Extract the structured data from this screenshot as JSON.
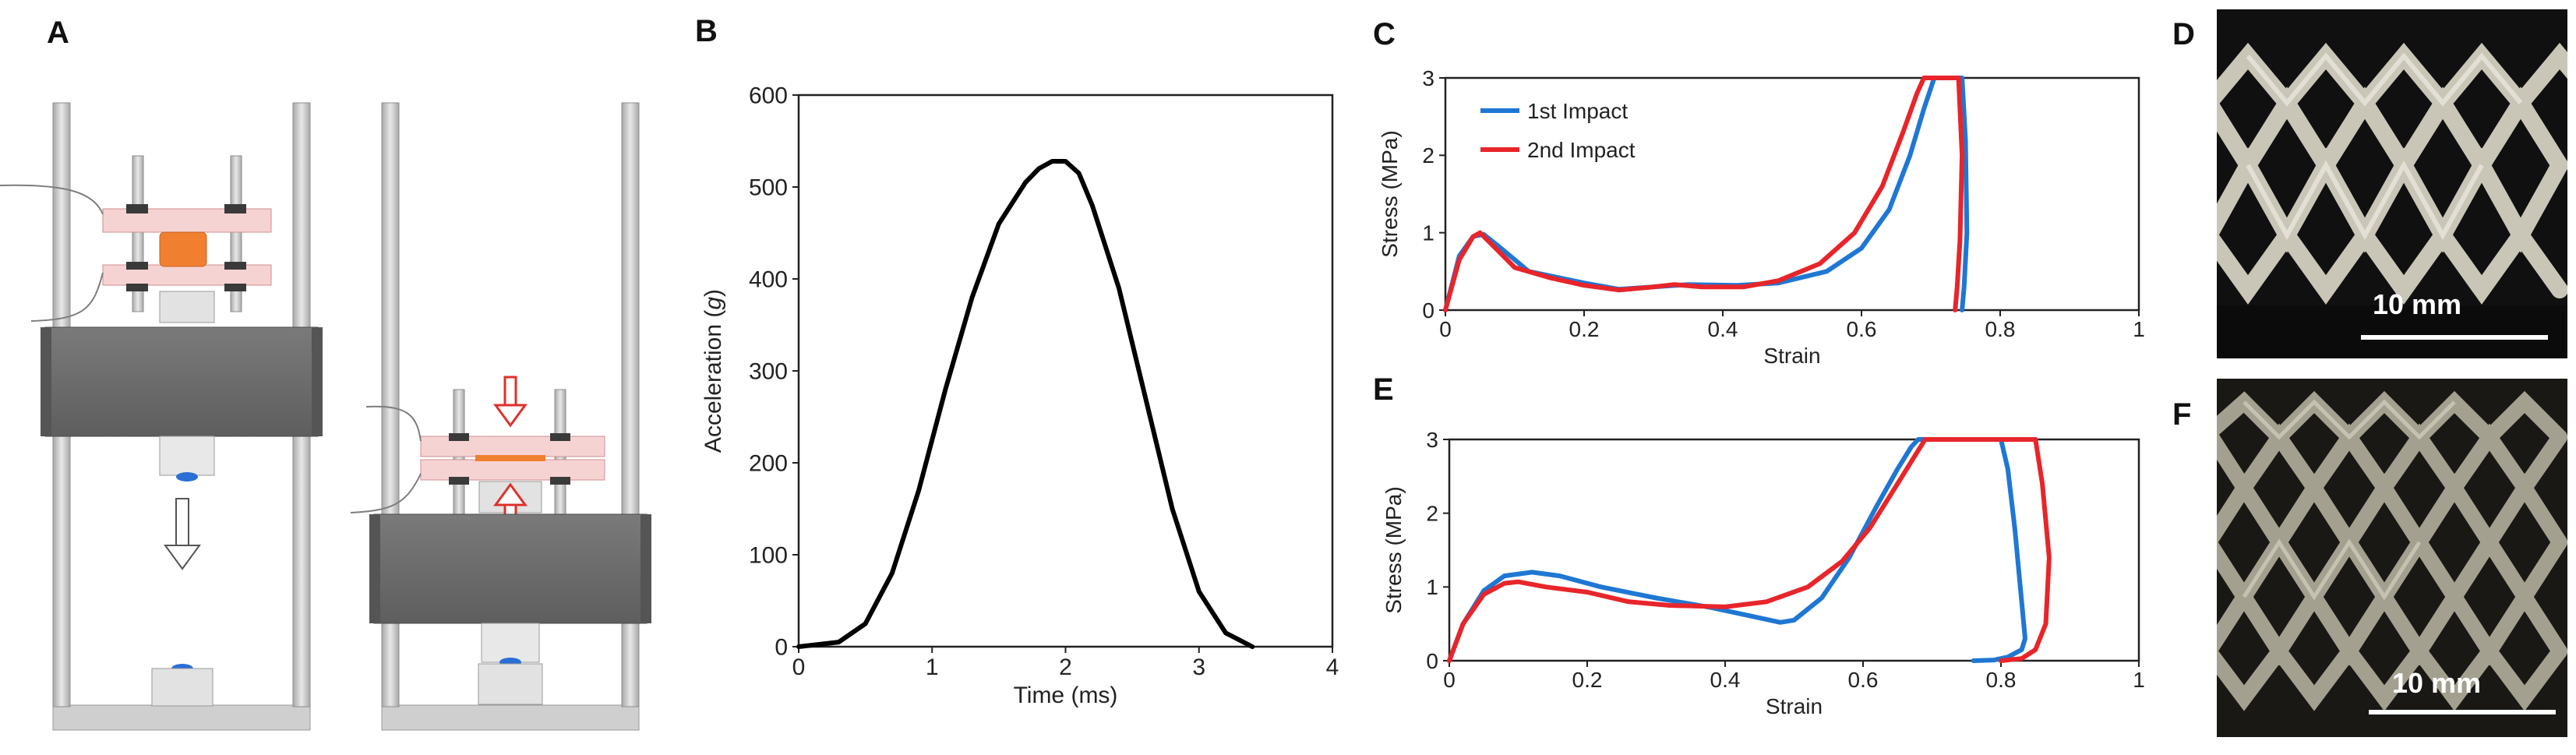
{
  "panels": {
    "A": {
      "label": "A"
    },
    "B": {
      "label": "B"
    },
    "C": {
      "label": "C"
    },
    "D": {
      "label": "D",
      "scale_text": "10 mm"
    },
    "E": {
      "label": "E"
    },
    "F": {
      "label": "F",
      "scale_text": "10 mm"
    }
  },
  "colors": {
    "first_impact": "#1f77d4",
    "second_impact": "#e8252a",
    "acceleration": "#000000",
    "plate": "#f6d3d3",
    "plate_edge": "#cc8f8f",
    "sample": "#f08030",
    "frame": "#cccccc",
    "block": "#6f6f6f"
  },
  "chart_data": [
    {
      "id": "B",
      "type": "line",
      "xlabel": "Time (ms)",
      "ylabel": "Acceleration (g)",
      "xlim": [
        0,
        4
      ],
      "ylim": [
        0,
        600
      ],
      "xticks": [
        "0",
        "1",
        "2",
        "3",
        "4"
      ],
      "yticks": [
        "0",
        "100",
        "200",
        "300",
        "400",
        "500",
        "600"
      ],
      "series": [
        {
          "name": "Acceleration",
          "x": [
            0,
            0.3,
            0.5,
            0.7,
            0.9,
            1.1,
            1.3,
            1.5,
            1.7,
            1.8,
            1.9,
            2.0,
            2.1,
            2.2,
            2.4,
            2.6,
            2.8,
            3.0,
            3.2,
            3.4
          ],
          "y": [
            0,
            5,
            25,
            80,
            170,
            280,
            380,
            460,
            505,
            520,
            528,
            528,
            515,
            480,
            390,
            270,
            150,
            60,
            15,
            0
          ]
        }
      ]
    },
    {
      "id": "C",
      "type": "line",
      "xlabel": "Strain",
      "ylabel": "Stress (MPa)",
      "xlim": [
        0,
        1
      ],
      "ylim": [
        0,
        3
      ],
      "xticks": [
        "0",
        "0.2",
        "0.4",
        "0.6",
        "0.8",
        "1"
      ],
      "yticks": [
        "0",
        "1",
        "2",
        "3"
      ],
      "legend": [
        "1st Impact",
        "2nd Impact"
      ],
      "series": [
        {
          "name": "1st Impact",
          "x": [
            0,
            0.02,
            0.04,
            0.055,
            0.08,
            0.12,
            0.2,
            0.25,
            0.3,
            0.35,
            0.42,
            0.48,
            0.55,
            0.6,
            0.64,
            0.67,
            0.69,
            0.705,
            0.72,
            0.745,
            0.75,
            0.752,
            0.748,
            0.745
          ],
          "y": [
            0,
            0.7,
            0.95,
            0.98,
            0.8,
            0.5,
            0.35,
            0.27,
            0.3,
            0.33,
            0.32,
            0.35,
            0.5,
            0.8,
            1.3,
            2.0,
            2.6,
            3.0,
            3.0,
            3.0,
            2.2,
            1.0,
            0.3,
            0
          ]
        },
        {
          "name": "2nd Impact",
          "x": [
            0,
            0.02,
            0.04,
            0.05,
            0.07,
            0.1,
            0.15,
            0.2,
            0.25,
            0.3,
            0.33,
            0.37,
            0.43,
            0.48,
            0.54,
            0.59,
            0.63,
            0.66,
            0.68,
            0.69,
            0.72,
            0.74,
            0.745,
            0.742,
            0.738,
            0.735
          ],
          "y": [
            0,
            0.65,
            0.95,
            1.0,
            0.82,
            0.55,
            0.42,
            0.32,
            0.26,
            0.3,
            0.33,
            0.3,
            0.3,
            0.38,
            0.6,
            1.0,
            1.6,
            2.3,
            2.8,
            3.0,
            3.0,
            3.0,
            2.0,
            0.9,
            0.3,
            0
          ]
        }
      ]
    },
    {
      "id": "E",
      "type": "line",
      "xlabel": "Strain",
      "ylabel": "Stress (MPa)",
      "xlim": [
        0,
        1
      ],
      "ylim": [
        0,
        3
      ],
      "xticks": [
        "0",
        "0.2",
        "0.4",
        "0.6",
        "0.8",
        "1"
      ],
      "yticks": [
        "0",
        "1",
        "2",
        "3"
      ],
      "series": [
        {
          "name": "1st Impact",
          "x": [
            0,
            0.02,
            0.05,
            0.08,
            0.12,
            0.16,
            0.22,
            0.3,
            0.38,
            0.44,
            0.48,
            0.5,
            0.54,
            0.58,
            0.62,
            0.65,
            0.67,
            0.68,
            0.72,
            0.76,
            0.8,
            0.81,
            0.82,
            0.83,
            0.835,
            0.83,
            0.81,
            0.79,
            0.76
          ],
          "y": [
            0,
            0.5,
            0.95,
            1.15,
            1.2,
            1.15,
            1.0,
            0.85,
            0.72,
            0.6,
            0.52,
            0.55,
            0.85,
            1.4,
            2.1,
            2.6,
            2.9,
            3.0,
            3.0,
            3.0,
            3.0,
            2.6,
            1.8,
            0.8,
            0.3,
            0.15,
            0.05,
            0.01,
            0
          ]
        },
        {
          "name": "2nd Impact",
          "x": [
            0,
            0.02,
            0.05,
            0.08,
            0.1,
            0.14,
            0.2,
            0.26,
            0.32,
            0.4,
            0.46,
            0.52,
            0.57,
            0.61,
            0.65,
            0.68,
            0.69,
            0.73,
            0.78,
            0.83,
            0.85,
            0.86,
            0.87,
            0.865,
            0.85,
            0.83,
            0.8
          ],
          "y": [
            0,
            0.5,
            0.9,
            1.05,
            1.07,
            1.0,
            0.93,
            0.8,
            0.75,
            0.73,
            0.8,
            1.0,
            1.35,
            1.8,
            2.4,
            2.85,
            3.0,
            3.0,
            3.0,
            3.0,
            3.0,
            2.4,
            1.4,
            0.5,
            0.15,
            0.03,
            0
          ]
        }
      ]
    }
  ]
}
